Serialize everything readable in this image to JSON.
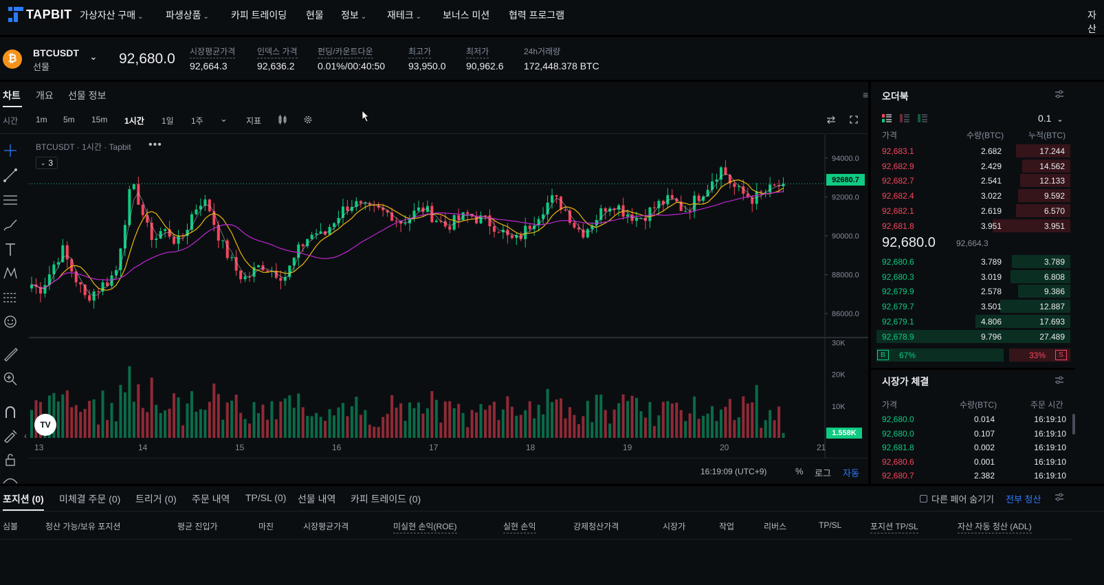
{
  "nav": {
    "logo": "TAPBIT",
    "items": [
      {
        "label": "가상자산 구매",
        "dropdown": true
      },
      {
        "label": "파생상품",
        "dropdown": true
      },
      {
        "label": "카피 트레이딩",
        "dropdown": false
      },
      {
        "label": "현물",
        "dropdown": false
      },
      {
        "label": "정보",
        "dropdown": true
      },
      {
        "label": "재테크",
        "dropdown": true
      },
      {
        "label": "보너스 미션",
        "dropdown": false
      },
      {
        "label": "협력 프로그램",
        "dropdown": false
      }
    ],
    "right_label": "자산"
  },
  "ticker": {
    "coin_icon": "₿",
    "symbol": "BTCUSDT",
    "type": "선물",
    "last_price": "92,680.0",
    "stats": [
      {
        "label": "시장평균가격",
        "value": "92,664.3"
      },
      {
        "label": "인덱스 가격",
        "value": "92,636.2"
      },
      {
        "label": "펀딩/카운트다운",
        "value": "0.01%/00:40:50"
      },
      {
        "label": "최고가",
        "value": "93,950.0"
      },
      {
        "label": "최저가",
        "value": "90,962.6"
      },
      {
        "label": "24h거래량",
        "value": "172,448.378 BTC"
      }
    ]
  },
  "chart_panel": {
    "tabs": [
      "차트",
      "개요",
      "선물 정보"
    ],
    "time_label": "시간",
    "timeframes": [
      "1m",
      "5m",
      "15m",
      "1시간",
      "1일",
      "1주"
    ],
    "active_timeframe": "1시간",
    "indicator_label": "지표",
    "legend": "BTCUSDT · 1시간 · Tapbit",
    "legend_dots": "•••",
    "collapse_count": "3",
    "price_tag": "92680.7",
    "volume_tag": "1.558K",
    "tv_logo": "TV",
    "footer_time": "16:19:09 (UTC+9)",
    "footer_buttons": [
      "%",
      "로그",
      "자동"
    ]
  },
  "chart_data": {
    "type": "candlestick",
    "title": "",
    "price_axis": {
      "ticks": [
        86000,
        88000,
        90000,
        92000,
        94000
      ],
      "tick_labels": [
        "86000.0",
        "88000.0",
        "90000.0",
        "92000.0",
        "94000.0"
      ],
      "range": [
        84800,
        95200
      ]
    },
    "volume_axis": {
      "ticks": [
        10000,
        20000,
        30000
      ],
      "tick_labels": [
        "10K",
        "20K",
        "30K"
      ],
      "range": [
        0,
        30500
      ]
    },
    "x_axis": {
      "ticks": [
        "13",
        "14",
        "15",
        "16",
        "17",
        "18",
        "19",
        "20",
        "21"
      ]
    },
    "last_price": 92680.7,
    "last_volume": 1558,
    "moving_averages": [
      {
        "color": "#f0b90b"
      },
      {
        "color": "#c026d3"
      },
      {
        "color": "#b7bdc6"
      }
    ],
    "colors": {
      "up": "#0ecb81",
      "down": "#f6465d"
    },
    "close_path": [
      87500,
      87200,
      87800,
      88600,
      89300,
      88400,
      87600,
      86800,
      87100,
      87400,
      87700,
      88200,
      90500,
      92600,
      91800,
      90400,
      89800,
      90300,
      90100,
      89600,
      90200,
      91200,
      91800,
      91600,
      90400,
      89400,
      88700,
      88000,
      87800,
      88200,
      88500,
      88300,
      88100,
      87900,
      88600,
      89400,
      89900,
      90200,
      89900,
      90600,
      91100,
      91500,
      91700,
      91400,
      91300,
      91300,
      91200,
      91100,
      90700,
      90900,
      91200,
      91400,
      91100,
      90800,
      90500,
      90700,
      90900,
      91100,
      90900,
      90800,
      90600,
      90400,
      89900,
      89700,
      90100,
      90600,
      91100,
      91600,
      91900,
      91600,
      91100,
      90400,
      90200,
      90700,
      91100,
      91600,
      91700,
      91300,
      91100,
      90900,
      91100,
      91400,
      91700,
      91800,
      91700,
      91300,
      91600,
      92100,
      92500,
      93100,
      93500,
      92800,
      92300,
      92100,
      91900,
      92100,
      92300,
      92500,
      92680
    ]
  },
  "order_book": {
    "title": "오더북",
    "step": "0.1",
    "headers": [
      "가격",
      "수량(BTC)",
      "누적(BTC)"
    ],
    "asks": [
      {
        "price": "92,683.1",
        "qty": "2.682",
        "cum": "17.244",
        "depth": 0.28
      },
      {
        "price": "92,682.9",
        "qty": "2.429",
        "cum": "14.562",
        "depth": 0.25
      },
      {
        "price": "92,682.7",
        "qty": "2.541",
        "cum": "12.133",
        "depth": 0.26
      },
      {
        "price": "92,682.4",
        "qty": "3.022",
        "cum": "9.592",
        "depth": 0.27
      },
      {
        "price": "92,682.1",
        "qty": "2.619",
        "cum": "6.570",
        "depth": 0.28
      },
      {
        "price": "92,681.8",
        "qty": "3.951",
        "cum": "3.951",
        "depth": 0.4
      }
    ],
    "mid_price": "92,680.0",
    "mid_mark": "92,664.3",
    "bids": [
      {
        "price": "92,680.6",
        "qty": "3.789",
        "cum": "3.789",
        "depth": 0.3
      },
      {
        "price": "92,680.3",
        "qty": "3.019",
        "cum": "6.808",
        "depth": 0.31
      },
      {
        "price": "92,679.9",
        "qty": "2.578",
        "cum": "9.386",
        "depth": 0.27
      },
      {
        "price": "92,679.7",
        "qty": "3.501",
        "cum": "12.887",
        "depth": 0.36
      },
      {
        "price": "92,679.1",
        "qty": "4.806",
        "cum": "17.693",
        "depth": 0.49
      },
      {
        "price": "92,678.9",
        "qty": "9.796",
        "cum": "27.489",
        "depth": 1.0
      }
    ],
    "ratio": {
      "buy_label": "B",
      "buy_pct": "67%",
      "sell_pct": "33%",
      "sell_label": "S",
      "buy_fraction": 0.67
    }
  },
  "trades": {
    "title": "시장가 체결",
    "headers": [
      "가격",
      "수량(BTC)",
      "주문 시간"
    ],
    "rows": [
      {
        "price": "92,680.0",
        "qty": "0.014",
        "time": "16:19:10",
        "side": "buy"
      },
      {
        "price": "92,680.0",
        "qty": "0.107",
        "time": "16:19:10",
        "side": "buy"
      },
      {
        "price": "92,681.8",
        "qty": "0.002",
        "time": "16:19:10",
        "side": "buy"
      },
      {
        "price": "92,680.6",
        "qty": "0.001",
        "time": "16:19:10",
        "side": "sell"
      },
      {
        "price": "92,680.7",
        "qty": "2.382",
        "time": "16:19:10",
        "side": "sell"
      }
    ]
  },
  "bottom": {
    "tabs": [
      "포지션 (0)",
      "미체결 주문 (0)",
      "트리거 (0)",
      "주문 내역",
      "TP/SL (0)",
      "선물 내역",
      "카피 트레이드 (0)"
    ],
    "hide_pairs": "다른 페어 숨기기",
    "close_all": "전부 청산",
    "columns": [
      "심볼",
      "청산 가능/보유 포지션",
      "평균 진입가",
      "마진",
      "시장평균가격",
      "미실현 손익(ROE)",
      "실현 손익",
      "강제청산가격",
      "시장가",
      "작업",
      "리버스",
      "TP/SL",
      "포지션 TP/SL",
      "자산 자동 청산 (ADL)"
    ]
  }
}
